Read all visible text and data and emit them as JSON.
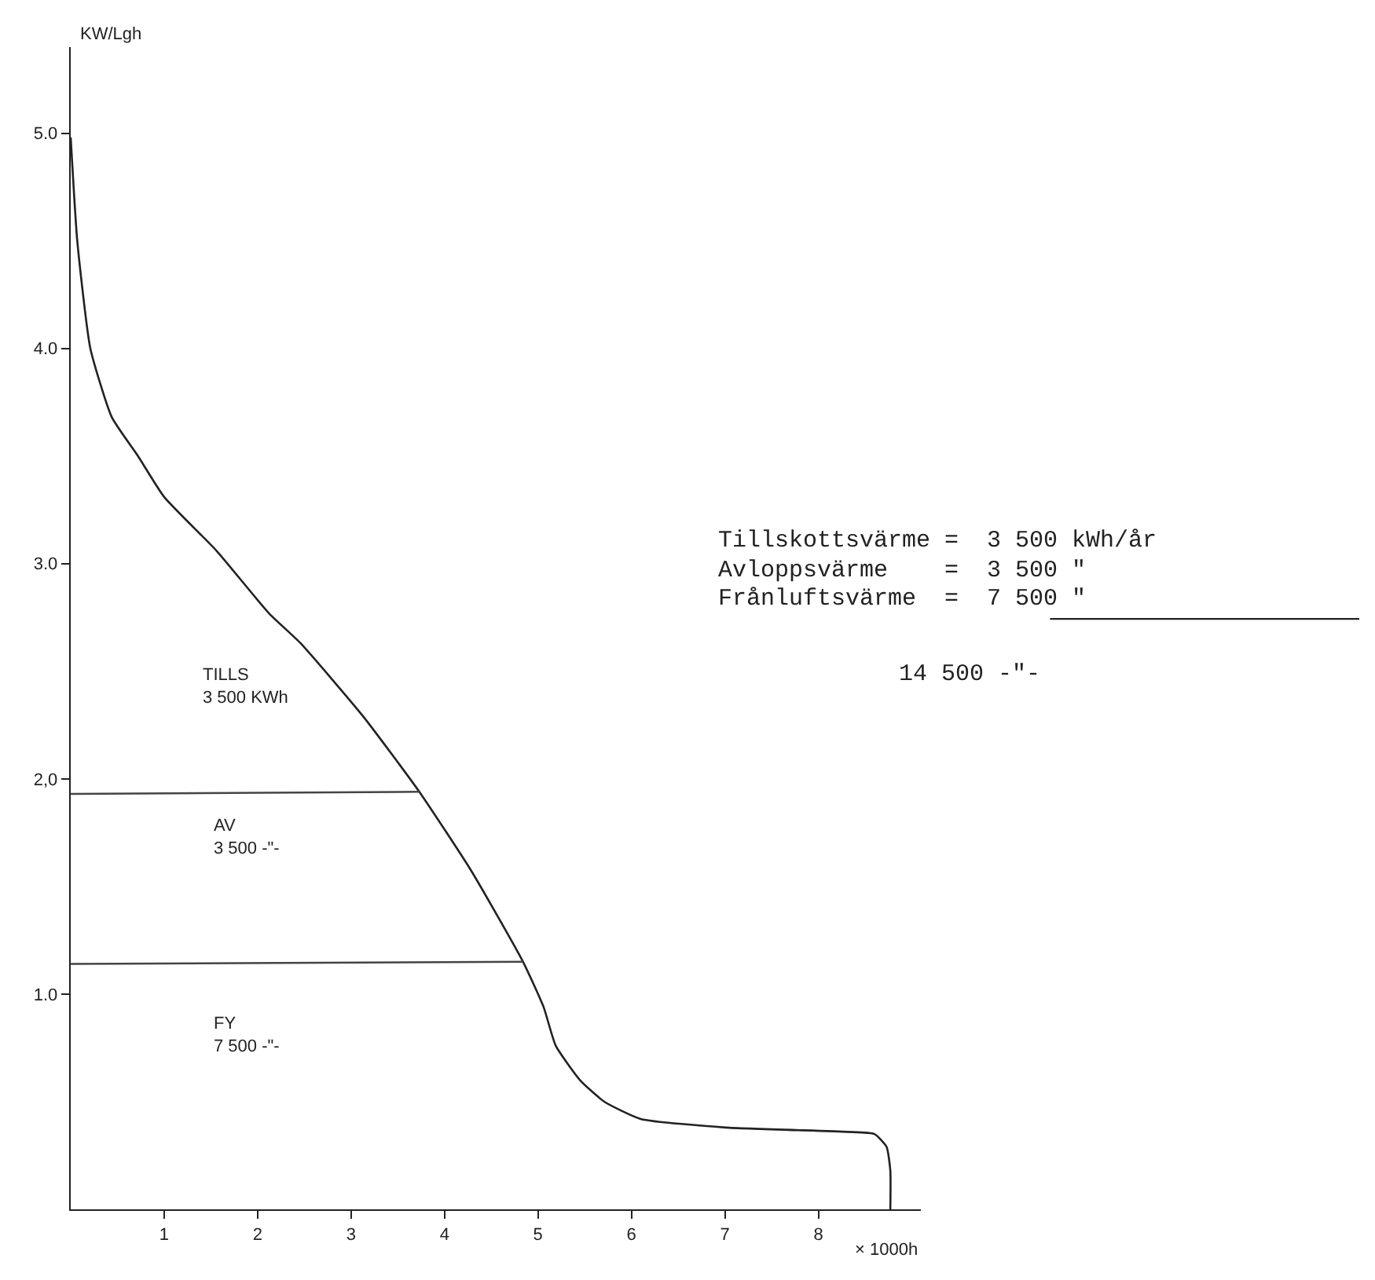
{
  "chart_data": {
    "type": "line",
    "xlabel": "× 1000h",
    "ylabel": "KW/Lgh",
    "xlim": [
      0,
      9.1
    ],
    "ylim": [
      0,
      5.4
    ],
    "xticks": [
      1,
      2,
      3,
      4,
      5,
      6,
      7,
      8
    ],
    "yticks": [
      {
        "value": 1,
        "label": "1.0"
      },
      {
        "value": 2,
        "label": "2,0"
      },
      {
        "value": 3,
        "label": "3.0"
      },
      {
        "value": 4,
        "label": "4.0"
      },
      {
        "value": 5,
        "label": "5.0"
      }
    ],
    "marker": "none",
    "line_style": "solid",
    "series": [
      {
        "color": "#222222",
        "x": [
          0,
          0.07,
          0.21,
          0.44,
          0.72,
          1.0,
          1.56,
          2.12,
          2.46,
          3.13,
          3.73,
          4.29,
          4.84,
          5.06,
          5.19,
          5.45,
          5.71,
          6.1,
          7.01,
          8.31,
          8.6,
          8.73,
          8.77,
          8.77
        ],
        "values": [
          4.98,
          4.5,
          4.0,
          3.68,
          3.5,
          3.31,
          3.06,
          2.77,
          2.63,
          2.29,
          1.94,
          1.57,
          1.15,
          0.94,
          0.76,
          0.6,
          0.5,
          0.42,
          0.38,
          0.36,
          0.35,
          0.29,
          0.18,
          0
        ]
      },
      {
        "color": "#444444",
        "x": [
          0,
          3.73
        ],
        "values": [
          1.93,
          1.94
        ]
      },
      {
        "color": "#444444",
        "x": [
          0,
          4.84
        ],
        "values": [
          1.14,
          1.15
        ]
      }
    ],
    "annotations": [
      "TILLS\n3 500 KWh",
      "AV\n3 500 -\"-",
      "FY\n7 500 -\"-",
      "Tillskottsvärme =  3 500 kWh/år",
      "Avloppsvärme    =  3 500 \"",
      "Frånluftsvärme  =  7 500 \"",
      "14 500 -\"-"
    ]
  }
}
